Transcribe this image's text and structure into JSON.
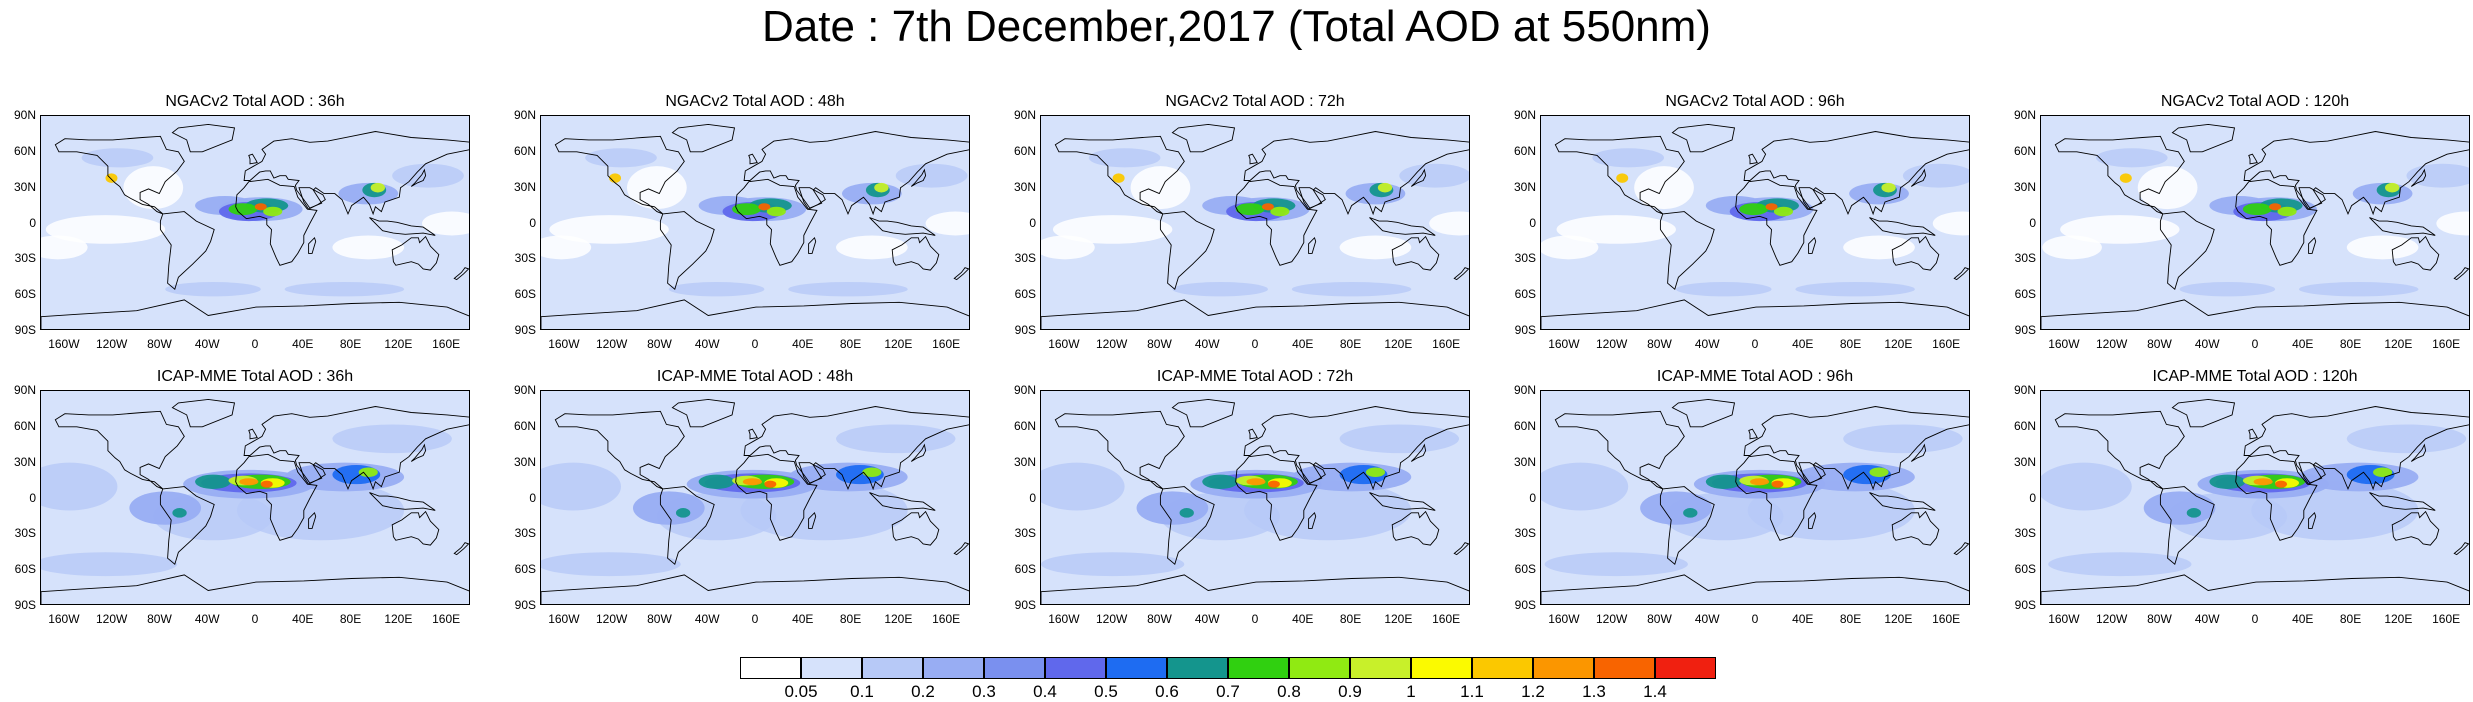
{
  "title": "Date : 7th December,2017 (Total AOD at 550nm)",
  "lat_ticks": [
    "90N",
    "60N",
    "30N",
    "0",
    "30S",
    "60S",
    "90S"
  ],
  "lon_ticks": [
    "160W",
    "120W",
    "80W",
    "40W",
    "0",
    "40E",
    "80E",
    "120E",
    "160E"
  ],
  "panels": [
    {
      "title": "NGACv2 Total AOD : 36h",
      "model": "NGACv2",
      "forecast_hour": "36h",
      "row": 0,
      "col": 0
    },
    {
      "title": "NGACv2 Total AOD : 48h",
      "model": "NGACv2",
      "forecast_hour": "48h",
      "row": 0,
      "col": 1
    },
    {
      "title": "NGACv2 Total AOD : 72h",
      "model": "NGACv2",
      "forecast_hour": "72h",
      "row": 0,
      "col": 2
    },
    {
      "title": "NGACv2 Total AOD : 96h",
      "model": "NGACv2",
      "forecast_hour": "96h",
      "row": 0,
      "col": 3
    },
    {
      "title": "NGACv2 Total AOD : 120h",
      "model": "NGACv2",
      "forecast_hour": "120h",
      "row": 0,
      "col": 4
    },
    {
      "title": "ICAP-MME Total AOD : 36h",
      "model": "ICAP-MME",
      "forecast_hour": "36h",
      "row": 1,
      "col": 0
    },
    {
      "title": "ICAP-MME Total AOD : 48h",
      "model": "ICAP-MME",
      "forecast_hour": "48h",
      "row": 1,
      "col": 1
    },
    {
      "title": "ICAP-MME Total AOD : 72h",
      "model": "ICAP-MME",
      "forecast_hour": "72h",
      "row": 1,
      "col": 2
    },
    {
      "title": "ICAP-MME Total AOD : 96h",
      "model": "ICAP-MME",
      "forecast_hour": "96h",
      "row": 1,
      "col": 3
    },
    {
      "title": "ICAP-MME Total AOD : 120h",
      "model": "ICAP-MME",
      "forecast_hour": "120h",
      "row": 1,
      "col": 4
    }
  ],
  "colorbar": {
    "labels": [
      "0.05",
      "0.1",
      "0.2",
      "0.3",
      "0.4",
      "0.5",
      "0.6",
      "0.7",
      "0.8",
      "0.9",
      "1",
      "1.1",
      "1.2",
      "1.3",
      "1.4"
    ],
    "colors": [
      "#ffffff",
      "#d6e2fb",
      "#b7c9f7",
      "#98adf3",
      "#7a90ef",
      "#6068ec",
      "#1e6cf2",
      "#14958d",
      "#30d010",
      "#90ea12",
      "#c8f02a",
      "#fbfa00",
      "#fbc800",
      "#fb9600",
      "#f86400",
      "#f02010"
    ]
  }
}
